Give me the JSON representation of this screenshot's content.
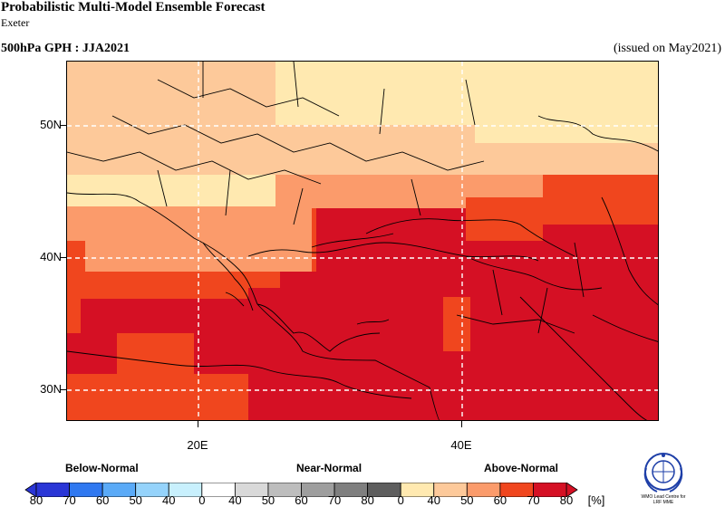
{
  "header": {
    "title": "Probabilistic Multi-Model Ensemble Forecast",
    "subtitle": "Exeter",
    "variable_label": "500hPa GPH : JJA2021",
    "issued": "(issued on May2021)"
  },
  "axes": {
    "y_labels": [
      "50N",
      "40N",
      "30N"
    ],
    "x_labels": [
      "20E",
      "40E"
    ]
  },
  "legend": {
    "categories": [
      "Below-Normal",
      "Near-Normal",
      "Above-Normal"
    ],
    "tick_labels": [
      "80",
      "70",
      "60",
      "50",
      "40",
      "0",
      "40",
      "50",
      "60",
      "70",
      "80",
      "0",
      "40",
      "50",
      "60",
      "70",
      "80",
      "[%]"
    ],
    "colors": {
      "below": [
        "#2a36d6",
        "#2f78f0",
        "#5aaaf7",
        "#95d3fb",
        "#c8f0fd",
        "#ffffff"
      ],
      "near": [
        "#ffffff",
        "#d9d9d9",
        "#bdbdbd",
        "#9e9e9e",
        "#7f7f7f",
        "#5e5e5e"
      ],
      "above": [
        "#ffffff",
        "#ffe9b0",
        "#fdc99a",
        "#fb9b6b",
        "#f0461e",
        "#d51024"
      ]
    }
  },
  "map_colors": {
    "above_40_50": "#ffe9b0",
    "above_50_60": "#fdc99a",
    "above_60_70": "#fb9b6b",
    "above_70_80": "#f0461e",
    "above_80": "#d51024"
  },
  "logo": {
    "line1": "WMO Lead Centre for",
    "line2": "LRF MME"
  }
}
